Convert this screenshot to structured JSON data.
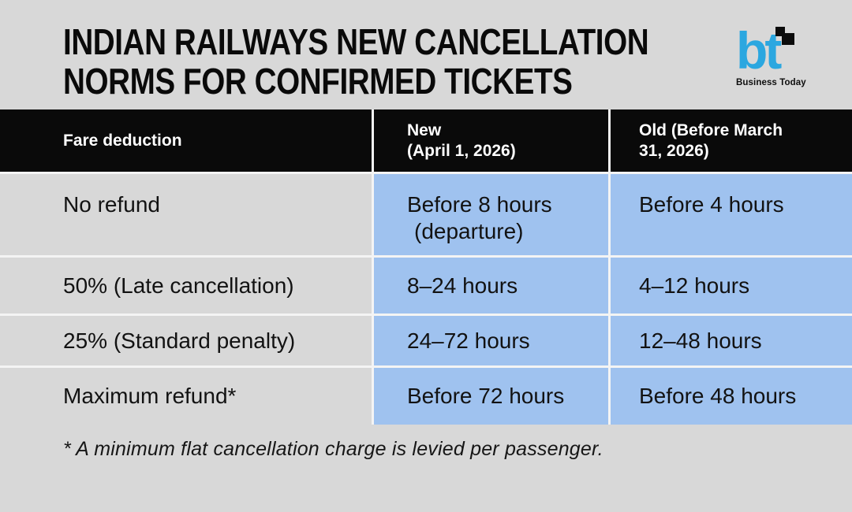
{
  "page": {
    "title_line1": "INDIAN RAILWAYS NEW CANCELLATION",
    "title_line2": "NORMS FOR CONFIRMED TICKETS",
    "footnote": "* A minimum flat cancellation charge is levied per passenger."
  },
  "logo": {
    "monogram": "bt",
    "caption": "Business Today",
    "brand_blue": "#2ba7e0"
  },
  "colors": {
    "page_background": "#d8d8d8",
    "header_background": "#0a0a0a",
    "header_text": "#ffffff",
    "cell_blue": "#9fc2ef",
    "body_text": "#121212"
  },
  "table": {
    "header": {
      "fare": "Fare deduction",
      "new_line1": "New",
      "new_line2": "(April 1, 2026)",
      "old_line1": "Old (Before March",
      "old_line2": "31, 2026)"
    },
    "rows": [
      {
        "fare": "No refund",
        "new_line1": "Before 8 hours",
        "new_line2": "(departure)",
        "old": "Before 4 hours"
      },
      {
        "fare": "50% (Late cancellation)",
        "new": "8–24 hours",
        "old": "4–12 hours"
      },
      {
        "fare": "25% (Standard penalty)",
        "new": "24–72 hours",
        "old": "12–48 hours"
      },
      {
        "fare": "Maximum refund*",
        "new": "Before 72 hours",
        "old": "Before 48 hours"
      }
    ]
  }
}
